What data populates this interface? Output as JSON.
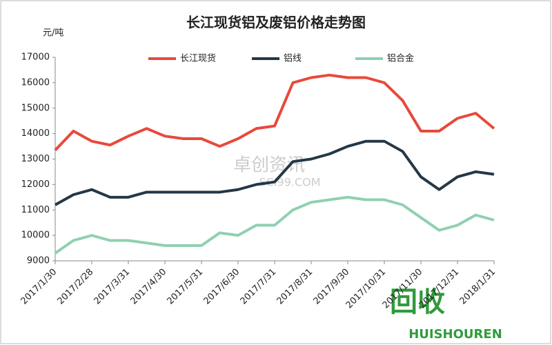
{
  "chart_data": {
    "type": "line",
    "title": "长江现货铝及废铝价格走势图",
    "y_label": "元/吨",
    "categories": [
      "2017/1/30",
      null,
      "2017/2/28",
      null,
      "2017/3/31",
      null,
      "2017/4/30",
      null,
      "2017/5/31",
      null,
      "2017/6/30",
      null,
      "2017/7/31",
      null,
      "2017/8/31",
      null,
      "2017/9/30",
      null,
      "2017/10/31",
      null,
      "2017/11/30",
      null,
      "2017/12/31",
      null,
      "2018/1/31"
    ],
    "series": [
      {
        "name": "长江现货",
        "color": "#e8493b",
        "values": [
          13350,
          14100,
          13700,
          13550,
          13900,
          14200,
          13900,
          13800,
          13800,
          13500,
          13800,
          14200,
          14300,
          16000,
          16200,
          16300,
          16200,
          16200,
          16000,
          15300,
          14100,
          14100,
          14600,
          14800,
          14200
        ]
      },
      {
        "name": "铝线",
        "color": "#243746",
        "values": [
          11200,
          11600,
          11800,
          11500,
          11500,
          11700,
          11700,
          11700,
          11700,
          11700,
          11800,
          12000,
          12100,
          12900,
          13000,
          13200,
          13500,
          13700,
          13700,
          13300,
          12300,
          11800,
          12300,
          12500,
          12400
        ]
      },
      {
        "name": "铝合金",
        "color": "#8fd0b0",
        "values": [
          9300,
          9800,
          10000,
          9800,
          9800,
          9700,
          9600,
          9600,
          9600,
          10100,
          10000,
          10400,
          10400,
          11000,
          11300,
          11400,
          11500,
          11400,
          11400,
          11200,
          10700,
          10200,
          10400,
          10800,
          10600
        ]
      }
    ],
    "ylim": [
      9000,
      17000
    ],
    "yticks": [
      9000,
      10000,
      11000,
      12000,
      13000,
      14000,
      15000,
      16000,
      17000
    ],
    "legend": "top",
    "watermark": "卓创资讯",
    "watermark_url": "SCI99.COM",
    "logo_mark": "回收",
    "logo": "HUISHOUREN"
  }
}
